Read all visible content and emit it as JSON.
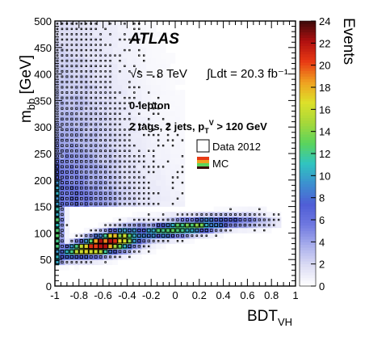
{
  "chart_data": {
    "type": "heatmap",
    "experiment_label": "ATLAS",
    "energy_label": "√s = 8 TeV",
    "lumi_label": "∫Ldt = 20.3 fb⁻¹",
    "channel_label": "0-lepton",
    "selection_label": "2 tags, 2 jets, p_T^V > 120 GeV",
    "xlabel": "BDT_VH",
    "ylabel": "m_bb [GeV]",
    "colorbar_label": "Events",
    "xlim": [
      -1,
      1
    ],
    "ylim": [
      0,
      500
    ],
    "zlim": [
      0,
      24
    ],
    "x_ticks": [
      "-1",
      "-0.8",
      "-0.6",
      "-0.4",
      "-0.2",
      "0",
      "0.2",
      "0.4",
      "0.6",
      "0.8",
      "1"
    ],
    "y_ticks": [
      "0",
      "50",
      "100",
      "150",
      "200",
      "250",
      "300",
      "350",
      "400",
      "450",
      "500"
    ],
    "z_ticks": [
      "0",
      "2",
      "4",
      "6",
      "8",
      "10",
      "12",
      "14",
      "16",
      "18",
      "20",
      "22",
      "24"
    ],
    "legend": [
      {
        "label": "Data 2012",
        "style": "open-box"
      },
      {
        "label": "MC",
        "style": "color-fill"
      }
    ],
    "colormap": [
      "#ffffff",
      "#dcdcf4",
      "#a8aeec",
      "#6f78e0",
      "#4f5ed6",
      "#3d8fd0",
      "#30c4c0",
      "#5bd45c",
      "#a6d83a",
      "#dde02a",
      "#f0a020",
      "#e83a14",
      "#b01010",
      "#3a0a0a"
    ],
    "mc_grid": {
      "x_bins": 50,
      "y_bins": 50,
      "bands": [
        {
          "component": "diagonal-core",
          "x": [
            -0.95,
            -0.4
          ],
          "y": [
            45,
            95
          ],
          "peak_events": 24
        },
        {
          "component": "diagonal-ridge",
          "x": [
            -0.4,
            0.55
          ],
          "y": [
            95,
            140
          ],
          "peak_events": 14
        },
        {
          "component": "horizontal-tail",
          "x": [
            -0.1,
            0.9
          ],
          "y": [
            105,
            140
          ],
          "peak_events": 8
        },
        {
          "component": "left-edge-column",
          "x": [
            -1.0,
            -0.8
          ],
          "y": [
            40,
            450
          ],
          "peak_events": 13
        },
        {
          "component": "upper-region",
          "x": [
            -1.0,
            0.0
          ],
          "y": [
            150,
            500
          ],
          "peak_events": 6
        }
      ]
    }
  }
}
